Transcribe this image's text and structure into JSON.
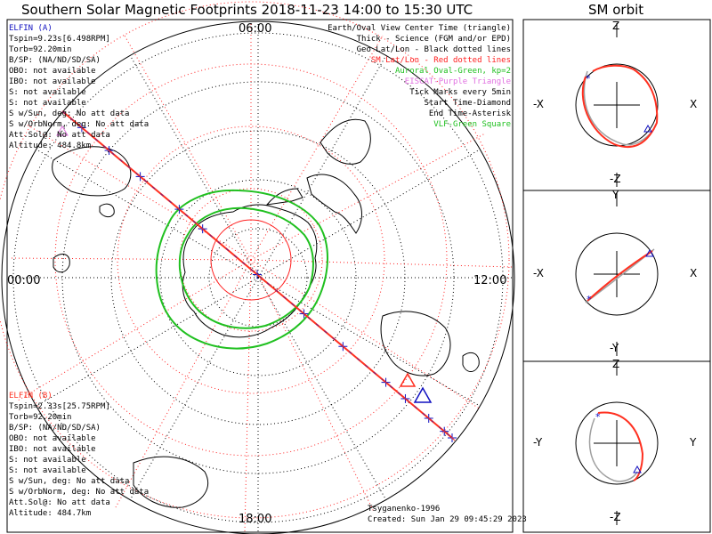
{
  "title": "Southern Solar Magnetic Footprints 2018-11-23 14:00 to 15:30 UTC",
  "orbit_title": "SM orbit",
  "mlt_labels": {
    "top": "06:00",
    "left": "00:00",
    "right": "12:00",
    "bottom": "18:00"
  },
  "elfin_a": {
    "name": "ELFIN (A)",
    "lines": [
      "Tspin=9.23s[6.498RPM]",
      "Torb=92.20min",
      "B/SP: (NA/ND/SD/SA)",
      "OBO: not available",
      "IBO: not available",
      "S: not available",
      "S: not available",
      "S w/Sun, deg: No att data",
      "S w/OrbNorm, deg: No att data",
      "Att.Sol@: No att data",
      "Altitude: 484.8km"
    ]
  },
  "elfin_b": {
    "name": "ELFIN (B)",
    "lines": [
      "Tspin=2.33s[25.75RPM]",
      "Torb=92.20min",
      "B/SP: (NA/ND/SD/SA)",
      "OBO: not available",
      "IBO: not available",
      "S: not available",
      "S: not available",
      "S w/Sun, deg: No att data",
      "S w/OrbNorm, deg: No att data",
      "Att.Sol@: No att data",
      "Altitude: 484.7km"
    ]
  },
  "legend": [
    {
      "text": "Earth/Oval View Center Time (triangle)",
      "color": "#000000"
    },
    {
      "text": "Thick - Science (FGM and/or EPD)",
      "color": "#000000"
    },
    {
      "text": "Geo Lat/Lon - Black dotted lines",
      "color": "#000000"
    },
    {
      "text": "SM Lat/Lon - Red dotted lines",
      "color": "#ff2020"
    },
    {
      "text": "Auroral Oval-Green, kp=2",
      "color": "#20c020"
    },
    {
      "text": "EISCAT-Purple Triangle",
      "color": "#e070e0"
    },
    {
      "text": "Tick Marks every 5min",
      "color": "#000000"
    },
    {
      "text": "Start Time-Diamond",
      "color": "#000000"
    },
    {
      "text": "End Time-Asterisk",
      "color": "#000000"
    },
    {
      "text": "VLF-Green Square",
      "color": "#20c020"
    }
  ],
  "footer": {
    "credit": "Tsyganenko-1996",
    "created": "Created: Sun Jan 29 09:45:29 2023"
  },
  "orbit_panels": [
    {
      "top": "Z",
      "bottom": "-Z",
      "left": "-X",
      "right": "X"
    },
    {
      "top": "Y",
      "bottom": "-Y",
      "left": "-X",
      "right": "X"
    },
    {
      "top": "Z",
      "bottom": "-Z",
      "left": "-Y",
      "right": "Y"
    }
  ],
  "colors": {
    "elfin_a": "#1010c0",
    "elfin_b": "#ff3020",
    "auroral_oval": "#20c020",
    "sm_grid": "#ff2020",
    "geo_grid": "#000000",
    "orbit_gray": "#a0a0a0"
  }
}
